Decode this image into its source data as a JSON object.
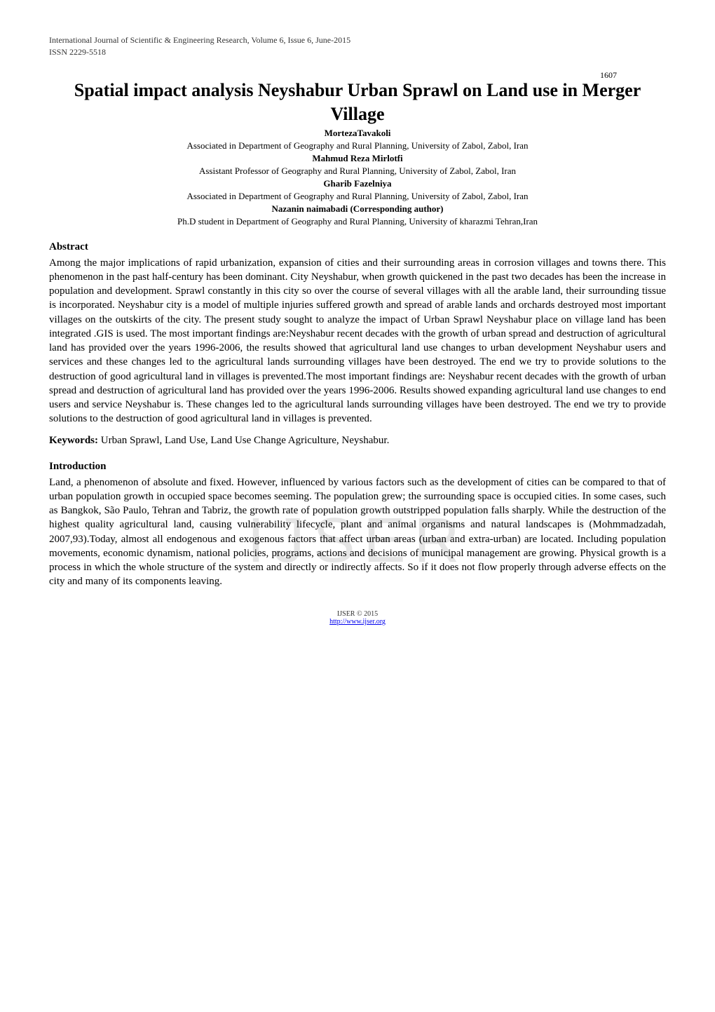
{
  "header": {
    "journal_line": "International Journal of Scientific & Engineering Research, Volume 6, Issue 6, June-2015",
    "page_number": "1607",
    "issn": "ISSN 2229-5518"
  },
  "title": "Spatial impact analysis Neyshabur Urban Sprawl on Land use in Merger Village",
  "authors": [
    {
      "name": "MortezaTavakoli",
      "affiliation": "Associated in Department of Geography and Rural Planning, University of Zabol, Zabol, Iran"
    },
    {
      "name": "Mahmud Reza Mirlotfi",
      "affiliation": "Assistant Professor of Geography and Rural Planning, University of Zabol, Zabol, Iran"
    },
    {
      "name": "Gharib Fazelniya",
      "affiliation": "Associated in Department of Geography and Rural Planning, University of Zabol, Zabol, Iran"
    },
    {
      "name": "Nazanin naimabadi (Corresponding author)",
      "affiliation": "Ph.D student in Department of Geography and Rural Planning, University of kharazmi Tehran,Iran"
    }
  ],
  "abstract": {
    "heading": "Abstract",
    "text": "Among the major implications of rapid urbanization, expansion of cities and their surrounding areas in corrosion villages and towns there. This phenomenon in the past half-century has been dominant. City Neyshabur, when growth quickened in the past two decades has been the increase in population and development. Sprawl constantly in this city so over the course of several villages with all the arable land, their surrounding tissue is incorporated. Neyshabur city is a model of multiple injuries suffered growth and spread of arable lands and orchards destroyed most important villages on the outskirts of the city. The present study sought to analyze the impact of Urban Sprawl Neyshabur place on village land has been integrated .GIS is used. The most important findings are:Neyshabur recent decades with the growth of urban spread and destruction of agricultural land has provided over the years 1996-2006, the results showed that agricultural land use changes to urban development Neyshabur users and services and these changes led to the agricultural lands surrounding villages have been destroyed. The end we try to provide solutions to the destruction of good agricultural land in villages is prevented.The most important findings are: Neyshabur recent decades with the growth of urban spread and destruction of agricultural land has provided over the years 1996-2006. Results showed expanding agricultural land use changes to end users and service Neyshabur is. These changes led to the agricultural lands surrounding villages have been destroyed. The end we try to provide solutions to the destruction of good agricultural land in villages is prevented."
  },
  "keywords": {
    "label": "Keywords:",
    "text": " Urban Sprawl, Land Use, Land Use Change Agriculture, Neyshabur."
  },
  "introduction": {
    "heading": "Introduction",
    "text": "Land, a phenomenon of absolute and fixed. However, influenced by various factors such as the development of cities can be compared to that of urban population growth in occupied space becomes seeming. The population grew; the surrounding space is occupied cities. In some cases, such as Bangkok, São Paulo, Tehran and Tabriz, the growth rate of population growth outstripped population falls sharply. While the destruction of the highest quality agricultural land, causing vulnerability lifecycle, plant and animal organisms and natural landscapes is (Mohmmadzadah, 2007,93).Today, almost all endogenous and exogenous factors that affect urban areas (urban and extra-urban) are located. Including population movements, economic dynamism, national policies, programs, actions and decisions of municipal management are growing. Physical growth is a process in which the whole structure of the system and directly or indirectly affects. So if it does not flow properly through adverse effects on the city and many of its components leaving."
  },
  "watermark": "IJSER",
  "footer": {
    "copyright": "IJSER © 2015",
    "link": "http://www.ijser.org"
  }
}
